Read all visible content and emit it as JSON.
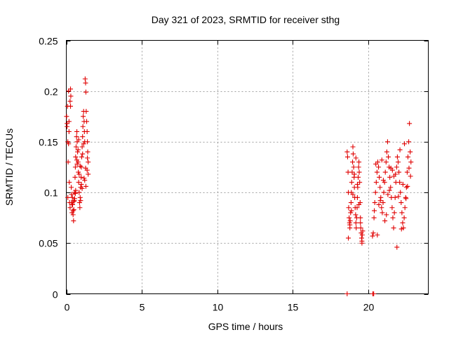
{
  "chart_data": {
    "type": "scatter",
    "title": "Day 321 of 2023, SRMTID for receiver sthg",
    "xlabel": "GPS time / hours",
    "ylabel": "SRMTID / TECUs",
    "xlim": [
      0,
      24
    ],
    "ylim": [
      0,
      0.25
    ],
    "xticks": [
      0,
      5,
      10,
      15,
      20
    ],
    "yticks": [
      0,
      0.05,
      0.1,
      0.15,
      0.2,
      0.25
    ],
    "grid": true,
    "marker": "plus",
    "color": "#e00000",
    "series": [
      {
        "x": [
          0.02,
          0.05,
          0.08,
          0.1,
          0.12,
          0.15,
          0.18,
          0.2,
          0.22,
          0.25,
          0.28,
          0.3,
          0.33,
          0.35,
          0.38,
          0.4,
          0.42,
          0.45,
          0.48,
          0.5,
          0.53,
          0.55,
          0.58,
          0.6,
          0.62,
          0.65,
          0.68,
          0.7,
          0.72,
          0.75,
          0.78,
          0.8,
          0.82,
          0.85,
          0.88,
          0.9,
          0.92,
          0.95,
          0.98,
          1.0,
          1.02,
          1.05,
          1.08,
          1.1,
          1.12,
          1.15,
          1.18,
          1.2,
          1.22,
          1.25,
          1.28,
          1.3,
          1.32,
          1.35,
          1.38,
          1.4,
          1.42,
          1.45,
          0.1,
          0.18,
          0.28,
          0.35,
          0.45,
          0.55,
          0.62,
          0.7,
          0.78,
          0.85,
          0.92,
          1.0,
          1.08,
          1.15,
          1.22,
          1.3,
          1.38,
          1.45,
          0.05,
          0.15,
          0.25,
          0.38,
          0.5,
          0.6,
          0.72,
          0.82,
          0.95,
          1.05,
          1.18,
          1.28,
          1.4
        ],
        "y": [
          0.175,
          0.165,
          0.185,
          0.15,
          0.13,
          0.2,
          0.17,
          0.11,
          0.09,
          0.085,
          0.202,
          0.195,
          0.105,
          0.09,
          0.08,
          0.095,
          0.088,
          0.078,
          0.072,
          0.083,
          0.092,
          0.1,
          0.115,
          0.125,
          0.135,
          0.145,
          0.155,
          0.16,
          0.15,
          0.14,
          0.13,
          0.12,
          0.11,
          0.1,
          0.09,
          0.085,
          0.095,
          0.105,
          0.115,
          0.125,
          0.135,
          0.145,
          0.155,
          0.165,
          0.175,
          0.18,
          0.17,
          0.16,
          0.15,
          0.212,
          0.208,
          0.199,
          0.18,
          0.17,
          0.16,
          0.15,
          0.14,
          0.13,
          0.095,
          0.16,
          0.185,
          0.098,
          0.082,
          0.094,
          0.102,
          0.132,
          0.142,
          0.118,
          0.126,
          0.108,
          0.138,
          0.148,
          0.112,
          0.106,
          0.122,
          0.118,
          0.168,
          0.148,
          0.19,
          0.088,
          0.091,
          0.099,
          0.128,
          0.152,
          0.092,
          0.104,
          0.114,
          0.124,
          0.134
        ]
      },
      {
        "x": [
          18.62,
          18.65,
          18.68,
          18.7,
          18.72,
          18.75,
          18.78,
          18.8,
          18.82,
          18.85,
          18.88,
          18.9,
          18.92,
          18.95,
          18.98,
          19.0,
          19.02,
          19.05,
          19.08,
          19.1,
          19.12,
          19.15,
          19.18,
          19.2,
          19.22,
          19.25,
          19.28,
          19.3,
          19.32,
          19.35,
          19.38,
          19.4,
          19.42,
          19.45,
          19.48,
          19.5,
          19.52,
          19.55,
          19.58,
          19.6,
          19.62,
          19.65,
          18.7,
          18.8,
          18.9,
          19.0,
          19.1,
          19.2,
          19.3,
          19.4,
          19.5,
          19.6
        ],
        "y": [
          0.14,
          0.135,
          0.12,
          0.1,
          0.085,
          0.075,
          0.07,
          0.065,
          0.072,
          0.08,
          0.09,
          0.1,
          0.11,
          0.12,
          0.13,
          0.145,
          0.138,
          0.125,
          0.115,
          0.105,
          0.095,
          0.085,
          0.078,
          0.07,
          0.065,
          0.075,
          0.085,
          0.095,
          0.105,
          0.115,
          0.125,
          0.13,
          0.12,
          0.11,
          0.09,
          0.075,
          0.065,
          0.06,
          0.055,
          0.05,
          0.058,
          0.062,
          0.055,
          0.068,
          0.082,
          0.098,
          0.118,
          0.134,
          0.108,
          0.088,
          0.07,
          0.052
        ]
      },
      {
        "x": [
          20.3,
          20.35,
          20.4,
          20.45,
          20.5,
          20.55,
          20.6,
          20.65,
          20.7,
          20.75,
          20.8,
          20.85,
          20.9,
          20.95,
          21.0,
          21.05,
          21.1,
          21.15,
          21.2,
          21.25,
          21.3,
          21.35,
          21.4,
          21.45,
          21.5,
          21.55,
          21.6,
          21.65,
          21.7,
          21.75,
          21.8,
          21.85,
          21.9,
          21.95,
          22.0,
          22.05,
          22.1,
          22.15,
          22.2,
          22.25,
          22.3,
          22.35,
          22.4,
          22.45,
          22.5,
          22.55,
          22.6,
          22.65,
          22.7,
          22.75,
          22.8,
          22.85,
          20.42,
          20.62,
          20.82,
          21.02,
          21.22,
          21.42,
          21.62,
          21.82,
          22.02,
          22.22,
          22.42,
          22.62,
          22.82,
          20.52,
          20.72,
          20.92,
          21.12,
          21.32,
          21.52,
          21.72,
          21.92,
          22.12,
          22.32,
          22.52,
          22.72
        ],
        "y": [
          0.057,
          0.06,
          0.075,
          0.09,
          0.1,
          0.11,
          0.12,
          0.13,
          0.125,
          0.115,
          0.105,
          0.095,
          0.085,
          0.08,
          0.09,
          0.1,
          0.11,
          0.12,
          0.13,
          0.14,
          0.15,
          0.135,
          0.125,
          0.115,
          0.105,
          0.095,
          0.085,
          0.075,
          0.065,
          0.08,
          0.095,
          0.11,
          0.125,
          0.135,
          0.13,
          0.12,
          0.11,
          0.1,
          0.09,
          0.08,
          0.07,
          0.065,
          0.075,
          0.085,
          0.095,
          0.105,
          0.12,
          0.135,
          0.15,
          0.168,
          0.14,
          0.13,
          0.082,
          0.058,
          0.092,
          0.112,
          0.078,
          0.102,
          0.122,
          0.118,
          0.096,
          0.064,
          0.148,
          0.106,
          0.116,
          0.128,
          0.088,
          0.132,
          0.072,
          0.098,
          0.124,
          0.116,
          0.046,
          0.142,
          0.108,
          0.094,
          0.124
        ]
      },
      {
        "x": [
          18.62,
          20.32,
          20.38
        ],
        "y": [
          0.0,
          0.0,
          0.0
        ]
      }
    ]
  }
}
